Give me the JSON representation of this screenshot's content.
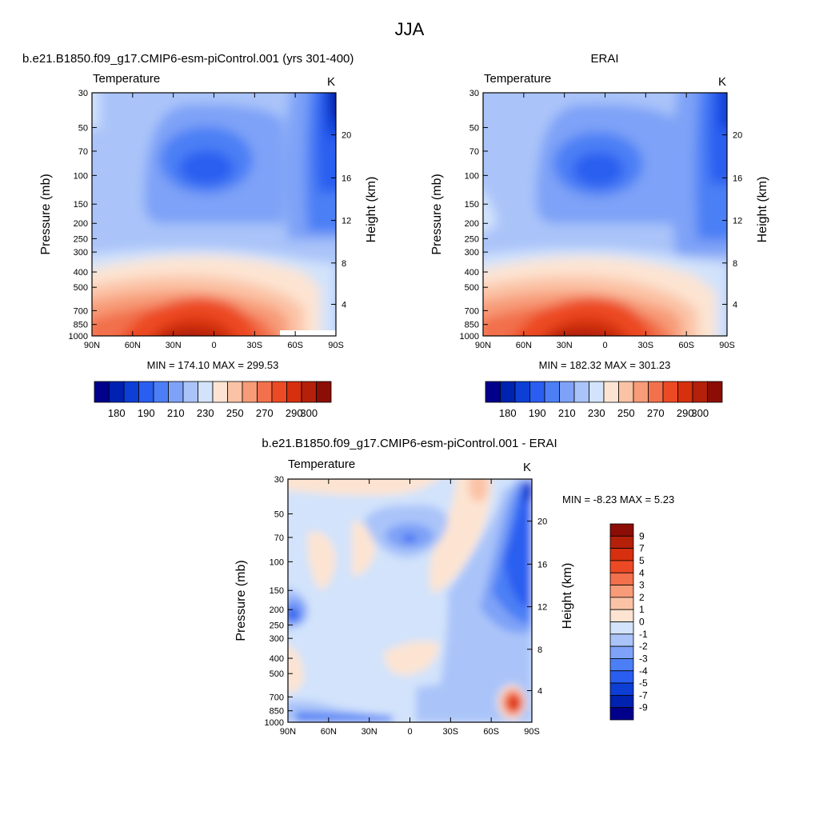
{
  "figure": {
    "title": "JJA",
    "palette": [
      "#00008b",
      "#0022b0",
      "#0d3fd6",
      "#2a5ef0",
      "#4c7ff5",
      "#7ea2f7",
      "#aac4f9",
      "#d2e3fb",
      "#fde4d2",
      "#fbc3a6",
      "#f79b78",
      "#f2704c",
      "#ec4a24",
      "#d6300e",
      "#b4200a",
      "#8b0d05"
    ]
  },
  "chart_data": [
    {
      "type": "contour",
      "panel_title": "b.e21.B1850.f09_g17.CMIP6-esm-piControl.001 (yrs 301-400)",
      "left_label": "Temperature",
      "units": "K",
      "xlabel": "",
      "ylabel": "Pressure (mb)",
      "ylabel_right": "Height (km)",
      "x_ticks": [
        "90N",
        "60N",
        "30N",
        "0",
        "30S",
        "60S",
        "90S"
      ],
      "y_ticks": [
        "30",
        "50",
        "70",
        "100",
        "150",
        "200",
        "250",
        "300",
        "400",
        "500",
        "700",
        "850",
        "1000"
      ],
      "height_ticks": [
        "20",
        "16",
        "12",
        "8",
        "4"
      ],
      "ylim": [
        1000,
        30
      ],
      "stats": "MIN = 174.10  MAX = 299.53",
      "colorbar_labels": [
        "180",
        "190",
        "210",
        "230",
        "250",
        "270",
        "290",
        "300"
      ],
      "levels": [
        180,
        185,
        190,
        200,
        210,
        220,
        230,
        240,
        250,
        260,
        270,
        280,
        290,
        295,
        300
      ]
    },
    {
      "type": "contour",
      "panel_title": "ERAI",
      "left_label": "Temperature",
      "units": "K",
      "xlabel": "",
      "ylabel": "Pressure (mb)",
      "ylabel_right": "Height (km)",
      "x_ticks": [
        "90N",
        "60N",
        "30N",
        "0",
        "30S",
        "60S",
        "90S"
      ],
      "y_ticks": [
        "30",
        "50",
        "70",
        "100",
        "150",
        "200",
        "250",
        "300",
        "400",
        "500",
        "700",
        "850",
        "1000"
      ],
      "height_ticks": [
        "20",
        "16",
        "12",
        "8",
        "4"
      ],
      "ylim": [
        1000,
        30
      ],
      "stats": "MIN = 182.32  MAX = 301.23",
      "colorbar_labels": [
        "180",
        "190",
        "210",
        "230",
        "250",
        "270",
        "290",
        "300"
      ],
      "levels": [
        180,
        185,
        190,
        200,
        210,
        220,
        230,
        240,
        250,
        260,
        270,
        280,
        290,
        295,
        300
      ]
    },
    {
      "type": "contour",
      "panel_title": "b.e21.B1850.f09_g17.CMIP6-esm-piControl.001 - ERAI",
      "left_label": "Temperature",
      "units": "K",
      "xlabel": "",
      "ylabel": "Pressure (mb)",
      "ylabel_right": "Height (km)",
      "x_ticks": [
        "90N",
        "60N",
        "30N",
        "0",
        "30S",
        "60S",
        "90S"
      ],
      "y_ticks": [
        "30",
        "50",
        "70",
        "100",
        "150",
        "200",
        "250",
        "300",
        "400",
        "500",
        "700",
        "850",
        "1000"
      ],
      "height_ticks": [
        "20",
        "16",
        "12",
        "8",
        "4"
      ],
      "ylim": [
        1000,
        30
      ],
      "stats": "MIN =  -8.23  MAX =   5.23",
      "colorbar_labels": [
        "9",
        "7",
        "5",
        "4",
        "3",
        "2",
        "1",
        "0",
        "-1",
        "-2",
        "-3",
        "-4",
        "-5",
        "-7",
        "-9"
      ],
      "levels": [
        -9,
        -7,
        -5,
        -4,
        -3,
        -2,
        -1,
        0,
        1,
        2,
        3,
        4,
        5,
        7,
        9
      ]
    }
  ]
}
